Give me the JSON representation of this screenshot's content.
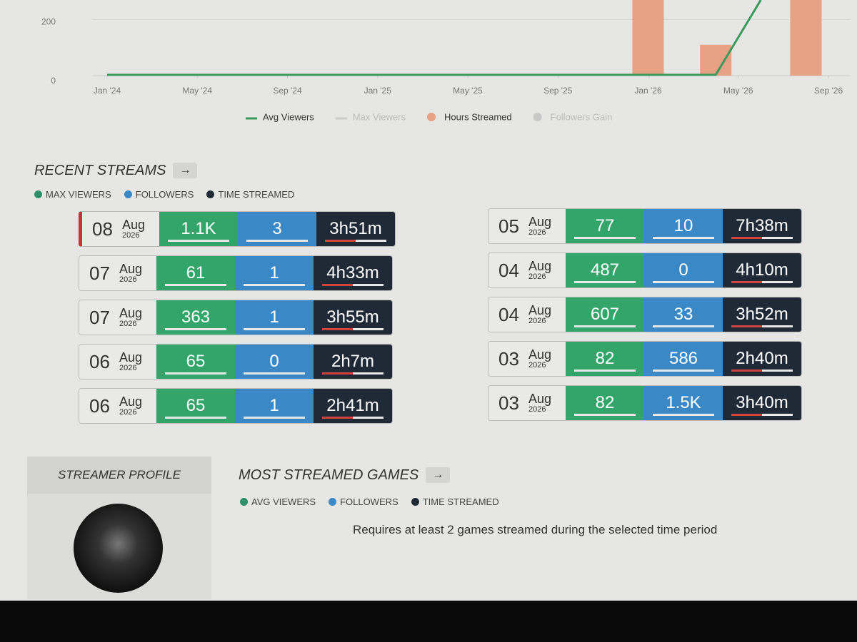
{
  "chart": {
    "yticks": [
      0,
      200
    ],
    "ylim": [
      0,
      270
    ],
    "xlim": [
      0,
      32
    ],
    "xticks": [
      {
        "value": 0,
        "label": "Jan '24"
      },
      {
        "value": 4,
        "label": "May '24"
      },
      {
        "value": 8,
        "label": "Sep '24"
      },
      {
        "value": 12,
        "label": "Jan '25"
      },
      {
        "value": 16,
        "label": "May '25"
      },
      {
        "value": 20,
        "label": "Sep '25"
      },
      {
        "value": 24,
        "label": "Jan '26"
      },
      {
        "value": 28,
        "label": "May '26"
      },
      {
        "value": 32,
        "label": "Sep '26"
      }
    ],
    "bars": {
      "name": "Hours Streamed",
      "color": "#e8a184",
      "x": [
        24,
        27,
        31
      ],
      "values": [
        270,
        110,
        270
      ]
    },
    "line": {
      "name": "Avg Viewers",
      "color": "#3a9a5c",
      "x": [
        0,
        27,
        29
      ],
      "values": [
        3,
        3,
        270
      ]
    },
    "legend_faded": [
      "Max Viewers",
      "Followers Gain"
    ]
  },
  "recent_streams": {
    "title": "RECENT STREAMS",
    "legend": [
      "MAX VIEWERS",
      "FOLLOWERS",
      "TIME STREAMED"
    ],
    "rows": [
      {
        "day": "08",
        "month": "Aug",
        "year": "2026",
        "max_viewers": "1.1K",
        "followers": "3",
        "time": "3h51m"
      },
      {
        "day": "07",
        "month": "Aug",
        "year": "2026",
        "max_viewers": "61",
        "followers": "1",
        "time": "4h33m"
      },
      {
        "day": "07",
        "month": "Aug",
        "year": "2026",
        "max_viewers": "363",
        "followers": "1",
        "time": "3h55m"
      },
      {
        "day": "06",
        "month": "Aug",
        "year": "2026",
        "max_viewers": "65",
        "followers": "0",
        "time": "2h7m"
      },
      {
        "day": "06",
        "month": "Aug",
        "year": "2026",
        "max_viewers": "65",
        "followers": "1",
        "time": "2h41m"
      },
      {
        "day": "05",
        "month": "Aug",
        "year": "2026",
        "max_viewers": "77",
        "followers": "10",
        "time": "7h38m"
      },
      {
        "day": "04",
        "month": "Aug",
        "year": "2026",
        "max_viewers": "487",
        "followers": "0",
        "time": "4h10m"
      },
      {
        "day": "04",
        "month": "Aug",
        "year": "2026",
        "max_viewers": "607",
        "followers": "33",
        "time": "3h52m"
      },
      {
        "day": "03",
        "month": "Aug",
        "year": "2026",
        "max_viewers": "82",
        "followers": "586",
        "time": "2h40m"
      },
      {
        "day": "03",
        "month": "Aug",
        "year": "2026",
        "max_viewers": "82",
        "followers": "1.5K",
        "time": "3h40m"
      }
    ]
  },
  "profile": {
    "title": "STREAMER PROFILE"
  },
  "games": {
    "title": "MOST STREAMED GAMES",
    "legend": [
      "AVG VIEWERS",
      "FOLLOWERS",
      "TIME STREAMED"
    ],
    "message": "Requires at least 2 games streamed during the selected time period"
  }
}
